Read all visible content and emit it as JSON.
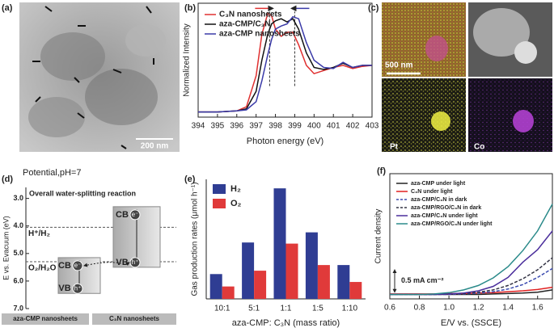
{
  "figure_panels": [
    {
      "label": "(a)",
      "scale_bar": "200 nm"
    },
    {
      "label": "(c)",
      "scale_bar": "500 nm",
      "maps": [
        "Pt",
        "Co"
      ]
    }
  ],
  "chart_data": [
    {
      "type": "line",
      "panel": "(b)",
      "x_label": "Photon energy (eV)",
      "y_label": "Normalized Intensity",
      "xlim": [
        394,
        403
      ],
      "ylim": [
        0,
        1.1
      ],
      "xticks": [
        394,
        395,
        396,
        397,
        398,
        399,
        400,
        401,
        402,
        403
      ],
      "legend": "upper left",
      "markers": [
        397.7,
        399.0
      ],
      "x": [
        394,
        395,
        396,
        396.5,
        397,
        397.3,
        397.6,
        397.8,
        398,
        398.3,
        398.6,
        398.9,
        399.2,
        399.6,
        400,
        400.5,
        401,
        401.5,
        402,
        402.5,
        403
      ],
      "series": [
        {
          "name": "C₃N nanosheets",
          "color": "#e03030",
          "values": [
            0.05,
            0.05,
            0.06,
            0.1,
            0.4,
            0.8,
            1.0,
            0.98,
            0.85,
            0.78,
            0.82,
            0.82,
            0.7,
            0.5,
            0.42,
            0.45,
            0.48,
            0.5,
            0.47,
            0.49,
            0.5
          ]
        },
        {
          "name": "aza-CMP/C₃N",
          "color": "#111111",
          "values": [
            0.05,
            0.05,
            0.06,
            0.08,
            0.25,
            0.55,
            0.8,
            0.9,
            0.93,
            0.95,
            0.92,
            0.95,
            0.85,
            0.62,
            0.48,
            0.46,
            0.48,
            0.52,
            0.48,
            0.5,
            0.5
          ]
        },
        {
          "name": "aza-CMP nanosheets",
          "color": "#3a3aa8",
          "values": [
            0.05,
            0.05,
            0.06,
            0.07,
            0.15,
            0.35,
            0.6,
            0.75,
            0.85,
            0.88,
            0.9,
            0.97,
            0.95,
            0.72,
            0.55,
            0.48,
            0.47,
            0.53,
            0.48,
            0.5,
            0.5
          ]
        }
      ]
    },
    {
      "type": "band",
      "panel": "(d)",
      "title": "Potential,pH=7",
      "subtitle": "Overall water-splitting reaction",
      "y_label": "E vs. Evacuum (eV)",
      "ylim": [
        2.6,
        7.0
      ],
      "yticks": [
        {
          "value": 3,
          "label": "3.0"
        },
        {
          "value": 4,
          "label": "4.0"
        },
        {
          "value": 5,
          "label": "5.0"
        },
        {
          "value": 6,
          "label": "6.0"
        },
        {
          "value": 7,
          "label": "7.0"
        }
      ],
      "levels": [
        {
          "name": "H⁺/H₂",
          "value": 4.05
        },
        {
          "name": "O₂/H₂O",
          "value": 5.3
        }
      ],
      "band_labels": {
        "cb": "CB",
        "vb": "VB",
        "electron": "e⁻",
        "hole": "h⁺"
      },
      "bands": [
        {
          "name": "aza-CMP nanosheets",
          "cb": 5.15,
          "vb": 6.45
        },
        {
          "name": "C₃N nanosheets",
          "cb": 3.3,
          "vb": 5.5
        }
      ]
    },
    {
      "type": "bar",
      "panel": "(e)",
      "x_label": "aza-CMP: C₃N (mass ratio)",
      "y_label": "Gas production rates (μmol h⁻¹)",
      "ylim": [
        0,
        5.3
      ],
      "legend": "upper left",
      "categories": [
        "10:1",
        "5:1",
        "1:1",
        "1:5",
        "1:10"
      ],
      "series": [
        {
          "name": "H₂",
          "color": "#2f3d93",
          "values": [
            1.1,
            2.5,
            4.9,
            2.95,
            1.5
          ]
        },
        {
          "name": "O₂",
          "color": "#e03a3a",
          "values": [
            0.55,
            1.25,
            2.45,
            1.5,
            0.75
          ]
        }
      ]
    },
    {
      "type": "line",
      "panel": "(f)",
      "x_label": "E/V vs. (SSCE)",
      "y_label": "Current density",
      "xlim": [
        0.6,
        1.7
      ],
      "ylim": [
        -0.1,
        2.7
      ],
      "legend": "upper left",
      "xticks": [
        0.6,
        0.8,
        {
          "value": 1,
          "label": "1.0"
        },
        1.2,
        1.4,
        1.6
      ],
      "scale_bar": {
        "value": 0.5,
        "label": "0.5 mA cm⁻²"
      },
      "x": [
        0.6,
        0.7,
        0.8,
        0.9,
        1.0,
        1.1,
        1.2,
        1.3,
        1.4,
        1.5,
        1.6,
        1.7
      ],
      "series": [
        {
          "name": "aza-CMP under light",
          "color": "#222222",
          "linestyle": "solid",
          "values": [
            0,
            0,
            0,
            0,
            0,
            0,
            0,
            0.01,
            0.02,
            0.03,
            0.05,
            0.1
          ]
        },
        {
          "name": "C₃N under light",
          "color": "#e02020",
          "linestyle": "solid",
          "values": [
            0.01,
            0.01,
            0.01,
            0.01,
            0.02,
            0.02,
            0.03,
            0.04,
            0.06,
            0.08,
            0.11,
            0.16
          ]
        },
        {
          "name": "aza-CMP/C₃N in dark",
          "color": "#3b4bb0",
          "linestyle": "dashed",
          "values": [
            0,
            0,
            0,
            0,
            0,
            0.01,
            0.03,
            0.06,
            0.12,
            0.22,
            0.38,
            0.58
          ]
        },
        {
          "name": "aza-CMP/RGO/C₃N in dark",
          "color": "#333344",
          "linestyle": "dashed",
          "values": [
            0,
            0,
            0,
            0,
            0.01,
            0.02,
            0.05,
            0.1,
            0.2,
            0.35,
            0.55,
            0.82
          ]
        },
        {
          "name": "aza-CMP/C₃N under light",
          "color": "#4b2e9c",
          "linestyle": "solid",
          "values": [
            0,
            0,
            0,
            0,
            0.01,
            0.03,
            0.08,
            0.18,
            0.38,
            0.72,
            1.0,
            1.42
          ]
        },
        {
          "name": "aza-CMP/RGO/C₃N under light",
          "color": "#2a8a8a",
          "linestyle": "solid",
          "values": [
            0,
            0,
            0,
            0.01,
            0.04,
            0.1,
            0.2,
            0.37,
            0.62,
            0.98,
            1.42,
            2.02
          ]
        }
      ]
    }
  ]
}
